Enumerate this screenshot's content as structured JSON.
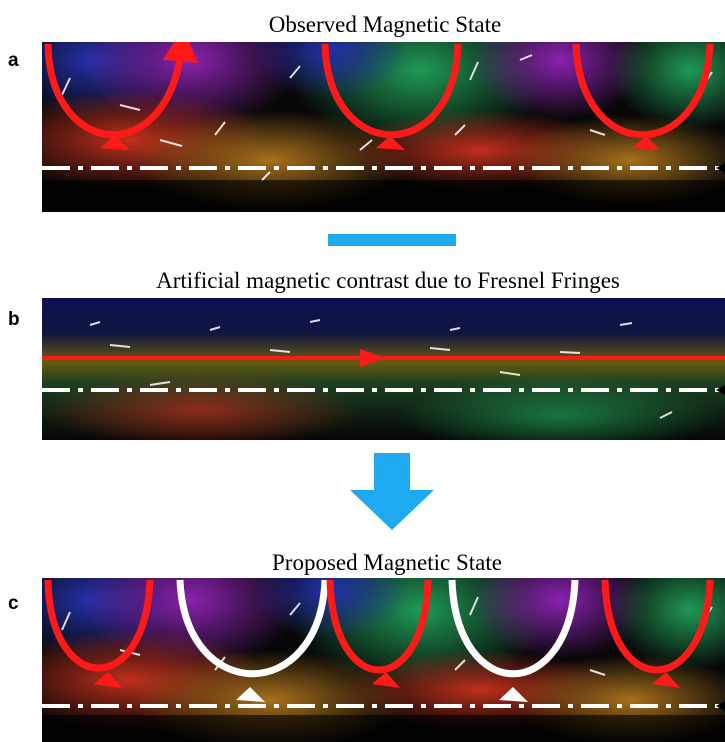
{
  "panels": [
    {
      "label": "a",
      "title": "Observed Magnetic State"
    },
    {
      "label": "b",
      "title": "Artificial magnetic contrast due to Fresnel Fringes"
    },
    {
      "label": "c",
      "title": "Proposed Magnetic State"
    }
  ]
}
